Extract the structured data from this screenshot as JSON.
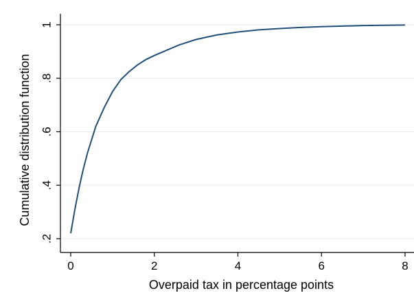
{
  "chart_data": {
    "type": "line",
    "xlabel": "Overpaid tax in percentage points",
    "ylabel": "Cumulative distribution function",
    "xlim": [
      0,
      8
    ],
    "ylim": [
      0.2,
      1.0
    ],
    "xticks": [
      0,
      2,
      4,
      6,
      8
    ],
    "xtick_labels": [
      "0",
      "2",
      "4",
      "6",
      "8"
    ],
    "yticks": [
      0.2,
      0.4,
      0.6,
      0.8,
      1.0
    ],
    "ytick_labels": [
      ".2",
      ".4",
      ".6",
      ".8",
      "1"
    ],
    "grid": true,
    "colors": {
      "line": "#1f4e79",
      "grid": "#e6eef2",
      "axis": "#000000"
    },
    "series": [
      {
        "x": [
          0,
          0.1,
          0.2,
          0.3,
          0.4,
          0.5,
          0.6,
          0.8,
          1.0,
          1.2,
          1.4,
          1.6,
          1.8,
          2.0,
          2.3,
          2.6,
          3.0,
          3.5,
          4.0,
          4.5,
          5.0,
          5.5,
          6.0,
          7.0,
          8.0
        ],
        "y": [
          0.22,
          0.31,
          0.39,
          0.46,
          0.52,
          0.57,
          0.62,
          0.69,
          0.75,
          0.795,
          0.825,
          0.85,
          0.87,
          0.885,
          0.905,
          0.925,
          0.945,
          0.962,
          0.973,
          0.981,
          0.986,
          0.99,
          0.993,
          0.997,
          0.999
        ]
      }
    ]
  }
}
